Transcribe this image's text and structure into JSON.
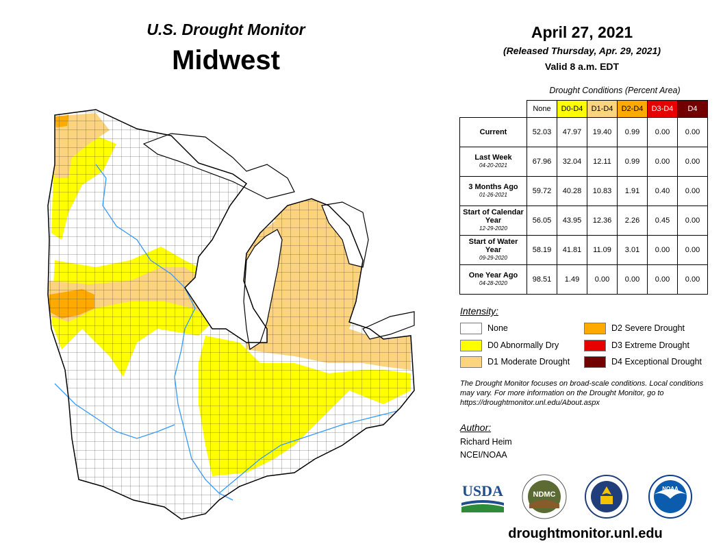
{
  "header": {
    "subtitle": "U.S. Drought Monitor",
    "region": "Midwest",
    "date": "April 27, 2021",
    "released": "(Released Thursday, Apr. 29, 2021)",
    "valid": "Valid 8 a.m. EDT"
  },
  "table": {
    "caption": "Drought Conditions (Percent Area)",
    "columns": [
      "None",
      "D0-D4",
      "D1-D4",
      "D2-D4",
      "D3-D4",
      "D4"
    ],
    "rows": [
      {
        "label": "Current",
        "date": "",
        "values": [
          "52.03",
          "47.97",
          "19.40",
          "0.99",
          "0.00",
          "0.00"
        ]
      },
      {
        "label": "Last Week",
        "date": "04-20-2021",
        "values": [
          "67.96",
          "32.04",
          "12.11",
          "0.99",
          "0.00",
          "0.00"
        ]
      },
      {
        "label": "3 Months Ago",
        "date": "01-26-2021",
        "values": [
          "59.72",
          "40.28",
          "10.83",
          "1.91",
          "0.40",
          "0.00"
        ]
      },
      {
        "label": "Start of Calendar Year",
        "date": "12-29-2020",
        "values": [
          "56.05",
          "43.95",
          "12.36",
          "2.26",
          "0.45",
          "0.00"
        ]
      },
      {
        "label": "Start of Water Year",
        "date": "09-29-2020",
        "values": [
          "58.19",
          "41.81",
          "11.09",
          "3.01",
          "0.00",
          "0.00"
        ]
      },
      {
        "label": "One Year Ago",
        "date": "04-28-2020",
        "values": [
          "98.51",
          "1.49",
          "0.00",
          "0.00",
          "0.00",
          "0.00"
        ]
      }
    ]
  },
  "legend": {
    "title": "Intensity:",
    "items": [
      {
        "label": "None",
        "color": "#ffffff"
      },
      {
        "label": "D0 Abnormally Dry",
        "color": "#ffff00"
      },
      {
        "label": "D1 Moderate Drought",
        "color": "#fcd37f"
      },
      {
        "label": "D2 Severe Drought",
        "color": "#ffaa00"
      },
      {
        "label": "D3 Extreme Drought",
        "color": "#e60000"
      },
      {
        "label": "D4 Exceptional Drought",
        "color": "#730000"
      }
    ]
  },
  "note": "The Drought Monitor focuses on broad-scale conditions. Local conditions may vary. For more information on the Drought Monitor, go to https://droughtmonitor.unl.edu/About.aspx",
  "author": {
    "title": "Author:",
    "name": "Richard Heim",
    "org": "NCEI/NOAA"
  },
  "logos": {
    "usda": "USDA",
    "ndmc": "NDMC",
    "noaa": "NOAA"
  },
  "website": "droughtmonitor.unl.edu"
}
